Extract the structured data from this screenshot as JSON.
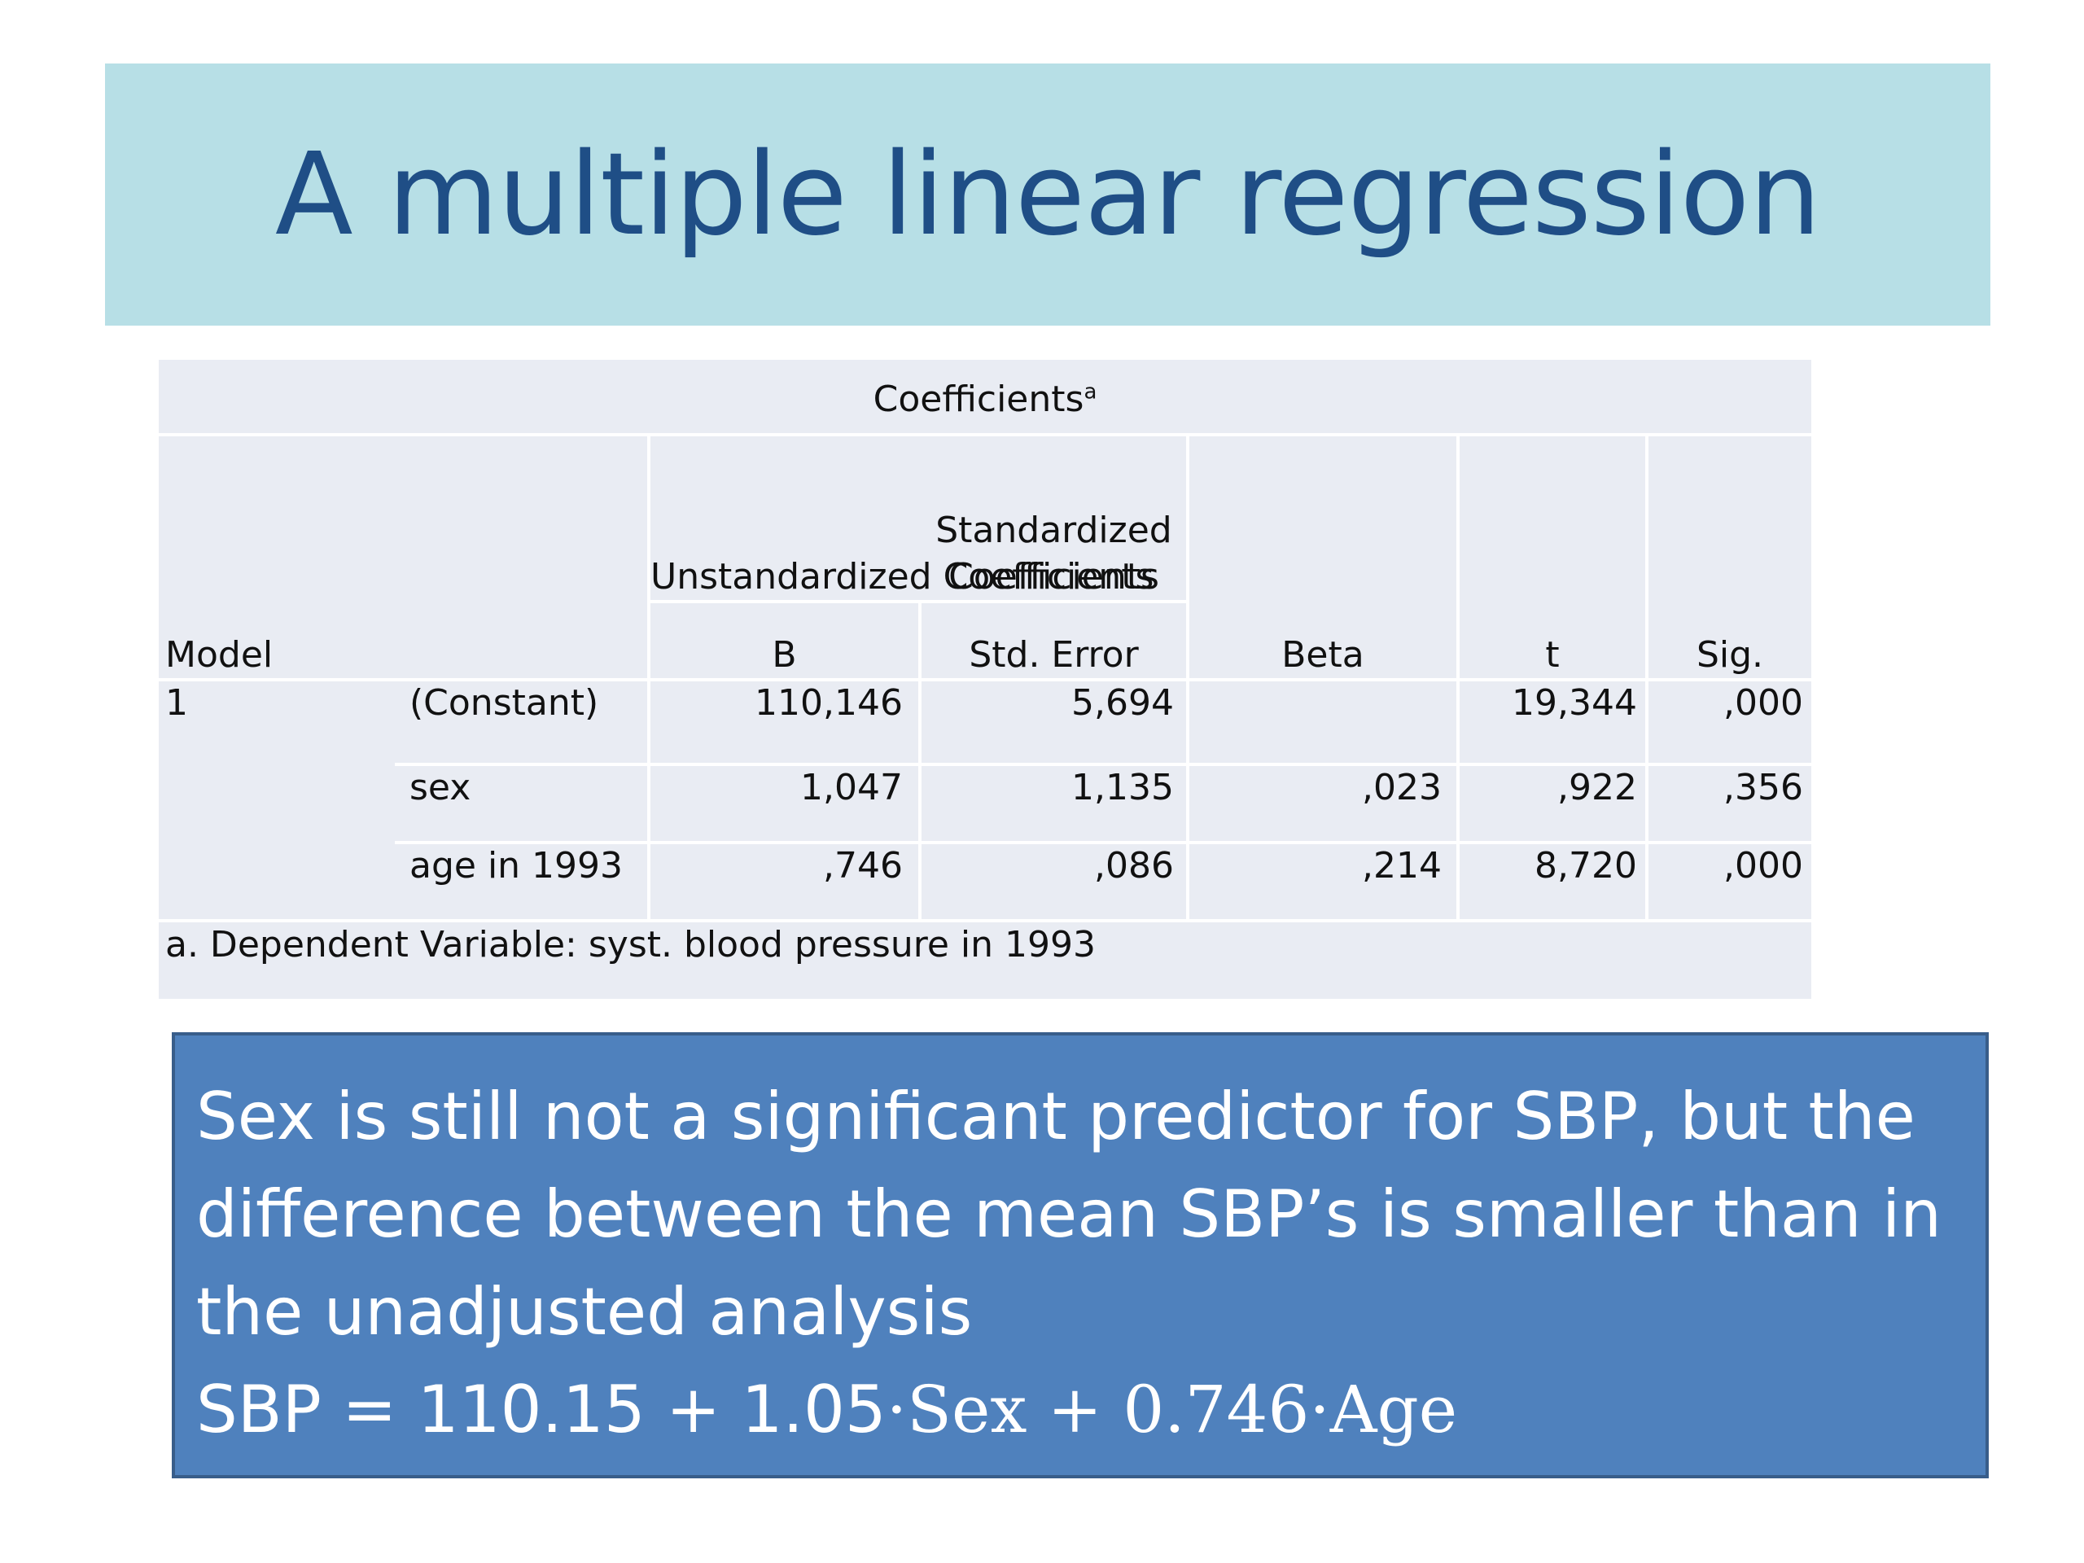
{
  "title": "A multiple linear regression",
  "table": {
    "caption": "Coefficients",
    "caption_sup": "a",
    "headers": {
      "model": "Model",
      "unstd": "Unstandardized Coefficients",
      "std_line1": "Standardized",
      "std_line2": "Coefficients",
      "b": "B",
      "std_error": "Std. Error",
      "beta": "Beta",
      "t": "t",
      "sig": "Sig."
    },
    "model_number": "1",
    "rows": [
      {
        "label": "(Constant)",
        "b": "110,146",
        "se": "5,694",
        "beta": "",
        "t": "19,344",
        "sig": ",000"
      },
      {
        "label": "sex",
        "b": "1,047",
        "se": "1,135",
        "beta": ",023",
        "t": ",922",
        "sig": ",356"
      },
      {
        "label": "age in 1993",
        "b": ",746",
        "se": ",086",
        "beta": ",214",
        "t": "8,720",
        "sig": ",000"
      }
    ],
    "footnote": "a. Dependent Variable: syst. blood pressure in 1993"
  },
  "note": {
    "text": "Sex is still not a significant predictor for SBP, but the difference between the mean SBP’s is smaller than in the unadjusted analysis",
    "formula_prefix": "SBP = 110.15 +  1.05",
    "formula_math": "·Sex + 0.746·Age"
  }
}
